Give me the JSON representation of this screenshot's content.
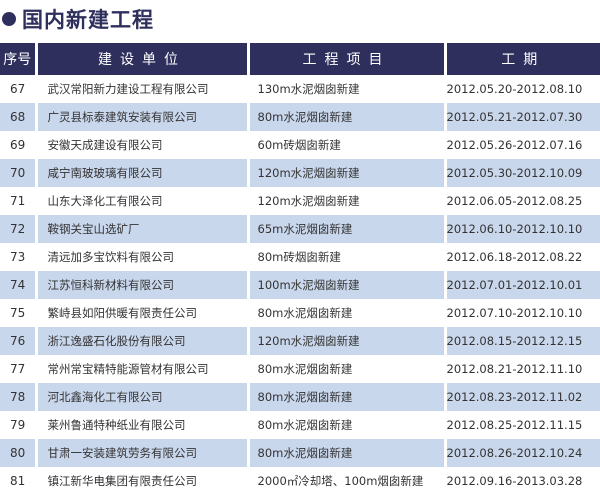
{
  "title": "国内新建工程",
  "colors": {
    "header_bg": "#2e2f5c",
    "alt_row_bg": "#c9d7ec"
  },
  "columns": [
    "序号",
    "建设单位",
    "工程项目",
    "工期"
  ],
  "rows": [
    {
      "no": "67",
      "unit": "武汉常阳新力建设工程有限公司",
      "project": "130m水泥烟囱新建",
      "period": "2012.05.20-2012.08.10"
    },
    {
      "no": "68",
      "unit": "广灵县标泰建筑安装有限公司",
      "project": "80m水泥烟囱新建",
      "period": "2012.05.21-2012.07.30"
    },
    {
      "no": "69",
      "unit": "安徽天成建设有限公司",
      "project": "60m砖烟囱新建",
      "period": "2012.05.26-2012.07.16"
    },
    {
      "no": "70",
      "unit": "咸宁南玻玻璃有限公司",
      "project": "120m水泥烟囱新建",
      "period": "2012.05.30-2012.10.09"
    },
    {
      "no": "71",
      "unit": "山东大泽化工有限公司",
      "project": "120m水泥烟囱新建",
      "period": "2012.06.05-2012.08.25"
    },
    {
      "no": "72",
      "unit": "鞍钢关宝山选矿厂",
      "project": "65m水泥烟囱新建",
      "period": "2012.06.10-2012.10.10"
    },
    {
      "no": "73",
      "unit": "清远加多宝饮料有限公司",
      "project": "80m砖烟囱新建",
      "period": "2012.06.18-2012.08.22"
    },
    {
      "no": "74",
      "unit": "江苏恒科新材料有限公司",
      "project": "100m水泥烟囱新建",
      "period": "2012.07.01-2012.10.01"
    },
    {
      "no": "75",
      "unit": "繁峙县如阳供暖有限责任公司",
      "project": "80m水泥烟囱新建",
      "period": "2012.07.10-2012.10.10"
    },
    {
      "no": "76",
      "unit": "浙江逸盛石化股份有限公司",
      "project": "120m水泥烟囱新建",
      "period": "2012.08.15-2012.12.15"
    },
    {
      "no": "77",
      "unit": "常州常宝精特能源管材有限公司",
      "project": "80m水泥烟囱新建",
      "period": "2012.08.21-2012.11.10"
    },
    {
      "no": "78",
      "unit": "河北鑫海化工有限公司",
      "project": "80m水泥烟囱新建",
      "period": "2012.08.23-2012.11.02"
    },
    {
      "no": "79",
      "unit": "莱州鲁通特种纸业有限公司",
      "project": "80m水泥烟囱新建",
      "period": "2012.08.25-2012.11.15"
    },
    {
      "no": "80",
      "unit": "甘肃一安装建筑劳务有限公司",
      "project": "80m水泥烟囱新建",
      "period": "2012.08.26-2012.10.24"
    },
    {
      "no": "81",
      "unit": "镇江新华电集团有限责任公司",
      "project": "2000㎡冷却塔、100m烟囱新建",
      "period": "2012.09.16-2013.03.28"
    }
  ]
}
